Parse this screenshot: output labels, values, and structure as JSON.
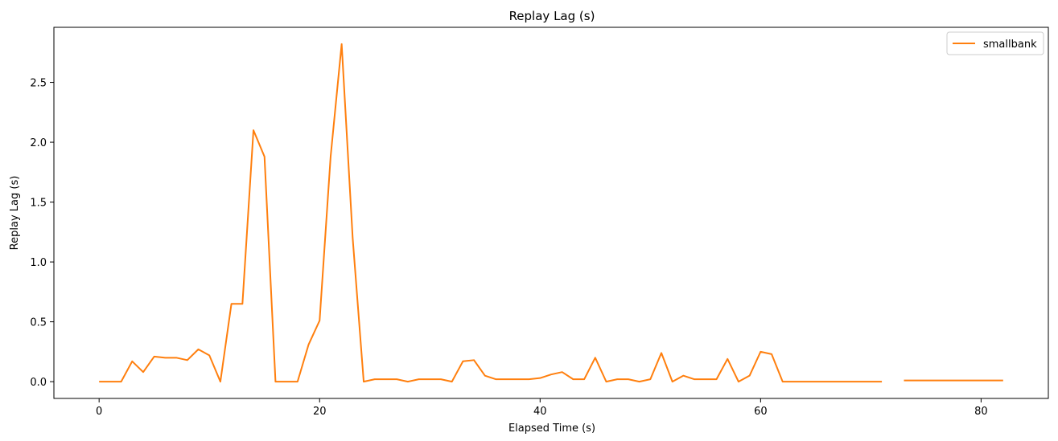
{
  "chart_data": {
    "type": "line",
    "title": "Replay Lag (s)",
    "xlabel": "Elapsed Time (s)",
    "ylabel": "Replay Lag (s)",
    "xlim": [
      -4.1,
      86.1
    ],
    "ylim": [
      -0.14,
      2.96
    ],
    "xticks": [
      0,
      20,
      40,
      60,
      80
    ],
    "yticks": [
      0.0,
      0.5,
      1.0,
      1.5,
      2.0,
      2.5
    ],
    "xtick_labels": [
      "0",
      "20",
      "40",
      "60",
      "80"
    ],
    "ytick_labels": [
      "0.0",
      "0.5",
      "1.0",
      "1.5",
      "2.0",
      "2.5"
    ],
    "legend_position": "top-right",
    "grid": false,
    "series": [
      {
        "name": "smallbank",
        "color": "#ff7f0e",
        "points": [
          [
            0,
            0.0
          ],
          [
            1,
            0.0
          ],
          [
            2,
            0.0
          ],
          [
            3,
            0.17
          ],
          [
            4,
            0.08
          ],
          [
            5,
            0.21
          ],
          [
            6,
            0.2
          ],
          [
            7,
            0.2
          ],
          [
            8,
            0.18
          ],
          [
            9,
            0.27
          ],
          [
            10,
            0.22
          ],
          [
            11,
            0.0
          ],
          [
            12,
            0.65
          ],
          [
            13,
            0.65
          ],
          [
            14,
            2.1
          ],
          [
            15,
            1.88
          ],
          [
            16,
            0.0
          ],
          [
            17,
            0.0
          ],
          [
            18,
            0.0
          ],
          [
            19,
            0.31
          ],
          [
            20,
            0.51
          ],
          [
            21,
            1.88
          ],
          [
            22,
            2.82
          ],
          [
            23,
            1.2
          ],
          [
            24,
            0.0
          ],
          [
            25,
            0.02
          ],
          [
            26,
            0.02
          ],
          [
            27,
            0.02
          ],
          [
            28,
            0.0
          ],
          [
            29,
            0.02
          ],
          [
            30,
            0.02
          ],
          [
            31,
            0.02
          ],
          [
            32,
            0.0
          ],
          [
            33,
            0.17
          ],
          [
            34,
            0.18
          ],
          [
            35,
            0.05
          ],
          [
            36,
            0.02
          ],
          [
            37,
            0.02
          ],
          [
            38,
            0.02
          ],
          [
            39,
            0.02
          ],
          [
            40,
            0.03
          ],
          [
            41,
            0.06
          ],
          [
            42,
            0.08
          ],
          [
            43,
            0.02
          ],
          [
            44,
            0.02
          ],
          [
            45,
            0.2
          ],
          [
            46,
            0.0
          ],
          [
            47,
            0.02
          ],
          [
            48,
            0.02
          ],
          [
            49,
            0.0
          ],
          [
            50,
            0.02
          ],
          [
            51,
            0.24
          ],
          [
            52,
            0.0
          ],
          [
            53,
            0.05
          ],
          [
            54,
            0.02
          ],
          [
            55,
            0.02
          ],
          [
            56,
            0.02
          ],
          [
            57,
            0.19
          ],
          [
            58,
            0.0
          ],
          [
            59,
            0.05
          ],
          [
            60,
            0.25
          ],
          [
            61,
            0.23
          ],
          [
            62,
            0.0
          ],
          [
            63,
            0.0
          ],
          [
            64,
            0.0
          ],
          [
            65,
            0.0
          ],
          [
            66,
            0.0
          ],
          [
            67,
            0.0
          ],
          [
            68,
            0.0
          ],
          [
            69,
            0.0
          ],
          [
            70,
            0.0
          ],
          [
            71,
            0.0
          ],
          null,
          [
            73,
            0.01
          ],
          [
            74,
            0.01
          ],
          [
            75,
            0.01
          ],
          [
            76,
            0.01
          ],
          [
            77,
            0.01
          ],
          [
            78,
            0.01
          ],
          [
            79,
            0.01
          ],
          [
            80,
            0.01
          ],
          [
            81,
            0.01
          ],
          [
            82,
            0.01
          ]
        ]
      }
    ]
  }
}
